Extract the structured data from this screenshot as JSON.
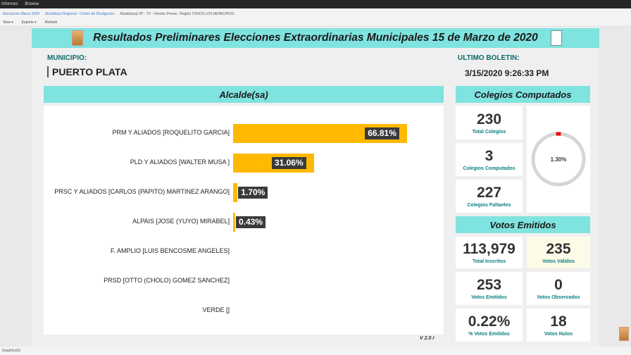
{
  "browser": {
    "tab1": "Informes",
    "tab2": "Browse"
  },
  "breadcrumb": [
    "Elecciones Marzo 2020",
    "Alcaldía(s) Regional - Centro de Divulgación",
    "Alcalde(sa) VP - TV - Versión Previa - Región TODOS LOS MUNICIPIOS"
  ],
  "toolbar": {
    "view": "View ▾",
    "export": "Exporte ▾",
    "refresh": "Refresh"
  },
  "title": "Resultados Preliminares Elecciones Extraordinarias Municipales 15 de Marzo de 2020",
  "municipio": {
    "label": "MUNICIPIO:",
    "value": "PUERTO PLATA"
  },
  "boletin": {
    "label": "ULTIMO BOLETIN:",
    "value": "3/15/2020 9:26:33 PM"
  },
  "alcalde_header": "Alcalde(sa)",
  "version": "V 2.0 r",
  "chart_data": {
    "type": "bar",
    "title": "Alcalde(sa)",
    "categories": [
      "PRM Y ALIADOS [ROQUELITO GARCIA]",
      "PLD Y ALIADOS [WALTER MUSA ]",
      "PRSC Y ALIADOS [CARLOS (PAPITO) MARTINEZ ARANGO]",
      "ALPAIS [JOSE (YUYO) MIRABEL]",
      "F. AMPLIO [LUIS BENCOSME ANGELES]",
      "PRSD [OTTO (CHOLO) GOMEZ SANCHEZ]",
      "VERDE []"
    ],
    "values": [
      66.81,
      31.06,
      1.7,
      0.43,
      null,
      null,
      null
    ],
    "labels": [
      "66.81%",
      "31.06%",
      "1.70%",
      "0.43%",
      "",
      "",
      ""
    ]
  },
  "colegios": {
    "header": "Colegios Computados",
    "total": "230",
    "total_label": "Total Colegios",
    "computados": "3",
    "computados_label": "Colegios Computados",
    "faltantes": "227",
    "faltantes_label": "Colegios Faltantes",
    "gauge_label": "1.30%",
    "gauge_value": 1.3
  },
  "votos": {
    "header": "Votos Emitidos",
    "inscritos": "113,979",
    "inscritos_label": "Total Inscritos",
    "validos": "235",
    "validos_label": "Votos Válidos",
    "emitidos": "253",
    "emitidos_label": "Votos Emitidos",
    "observados": "0",
    "observados_label": "Votos Observados",
    "pct": "0.22%",
    "pct_label": "% Votos Emitidos",
    "nulos": "18",
    "nulos_label": "Votos Nulos"
  },
  "status": "Graphics(0)"
}
